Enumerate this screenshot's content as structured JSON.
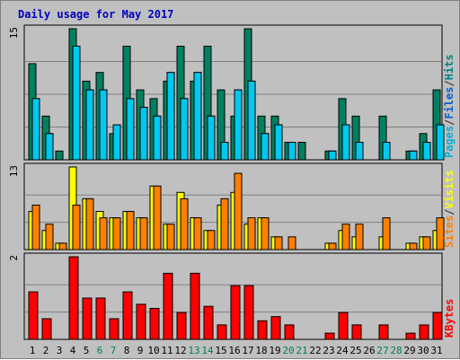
{
  "chart_data": {
    "type": "bar",
    "title": "Daily usage for May 2017",
    "categories": [
      "1",
      "2",
      "3",
      "4",
      "5",
      "6",
      "7",
      "8",
      "9",
      "10",
      "11",
      "12",
      "13",
      "14",
      "15",
      "16",
      "17",
      "18",
      "19",
      "20",
      "21",
      "22",
      "23",
      "24",
      "25",
      "26",
      "27",
      "28",
      "29",
      "30",
      "31"
    ],
    "weekend_days": [
      "6",
      "7",
      "13",
      "14",
      "20",
      "21",
      "27",
      "28"
    ],
    "panels": [
      {
        "ymax_label": "15",
        "ylim": [
          0,
          15
        ],
        "grid": true,
        "legend": [
          "Pages",
          "/",
          "Files",
          "/",
          "Hits"
        ],
        "legend_colors": [
          "#00b0d8",
          "#404040",
          "#0060d0",
          "#404040",
          "#008080"
        ],
        "series": [
          {
            "name": "Hits",
            "color": "#008060",
            "values": [
              11,
              5,
              1,
              15,
              9,
              10,
              3,
              13,
              8,
              7,
              9,
              13,
              9,
              13,
              8,
              5,
              15,
              5,
              5,
              2,
              2,
              0,
              1,
              7,
              5,
              0,
              5,
              0,
              1,
              3,
              8
            ]
          },
          {
            "name": "Files",
            "color": "#0060d0",
            "values": [
              7,
              3,
              0,
              13,
              8,
              8,
              4,
              7,
              6,
              5,
              10,
              7,
              10,
              5,
              2,
              8,
              9,
              3,
              4,
              2,
              0,
              0,
              1,
              4,
              2,
              0,
              2,
              0,
              1,
              2,
              4
            ]
          },
          {
            "name": "Pages",
            "color": "#00c8f0",
            "values": [
              7,
              3,
              0,
              13,
              8,
              8,
              4,
              7,
              6,
              5,
              10,
              7,
              10,
              5,
              2,
              8,
              9,
              3,
              4,
              2,
              0,
              0,
              1,
              4,
              2,
              0,
              2,
              0,
              1,
              2,
              4
            ]
          }
        ]
      },
      {
        "ymax_label": "13",
        "ylim": [
          0,
          13
        ],
        "grid": true,
        "legend": [
          "Sites",
          "/",
          "Visits"
        ],
        "legend_colors": [
          "#ff8000",
          "#404040",
          "#ffff00"
        ],
        "series": [
          {
            "name": "Visits",
            "color": "#ffff00",
            "values": [
              6,
              3,
              1,
              13,
              8,
              6,
              5,
              6,
              5,
              10,
              4,
              9,
              5,
              3,
              7,
              9,
              4,
              5,
              2,
              0,
              0,
              0,
              1,
              3,
              2,
              0,
              2,
              0,
              1,
              2,
              3
            ]
          },
          {
            "name": "Sites",
            "color": "#ff8000",
            "values": [
              7,
              4,
              1,
              7,
              8,
              5,
              5,
              6,
              5,
              10,
              4,
              8,
              5,
              3,
              8,
              12,
              5,
              5,
              2,
              2,
              0,
              0,
              1,
              4,
              4,
              0,
              5,
              0,
              1,
              2,
              5
            ]
          }
        ]
      },
      {
        "ymax_label": "2",
        "ylim": [
          0,
          2
        ],
        "grid": true,
        "legend": [
          "KBytes"
        ],
        "legend_colors": [
          "#ff0000"
        ],
        "series": [
          {
            "name": "KBytes",
            "color": "#ff0000",
            "values": [
              1.15,
              0.5,
              0,
              2,
              1,
              1,
              0.5,
              1.15,
              0.85,
              0.75,
              1.6,
              0.65,
              1.6,
              0.8,
              0.35,
              1.3,
              1.3,
              0.45,
              0.55,
              0.35,
              0,
              0,
              0.15,
              0.65,
              0.35,
              0,
              0.35,
              0,
              0.15,
              0.35,
              0.65
            ]
          }
        ]
      }
    ]
  }
}
